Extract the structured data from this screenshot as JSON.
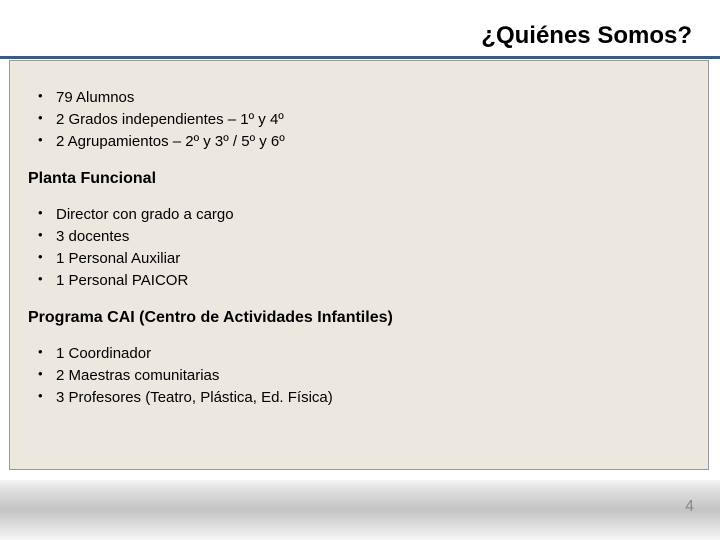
{
  "colors": {
    "title_text": "#000000",
    "underline": "#3d5a80",
    "panel_bg": "#ece8df",
    "panel_border": "#999999",
    "body_text": "#000000",
    "page_number": "#888888",
    "footer_gradient_top": "#f5f5f5",
    "footer_gradient_mid": "#c4c4c4",
    "footer_gradient_bottom": "#f8f8f8"
  },
  "typography": {
    "title_fontsize": 24,
    "title_weight": "bold",
    "heading_fontsize": 16,
    "body_fontsize": 15,
    "font_family": "Verdana, Tahoma, sans-serif"
  },
  "title": "¿Quiénes Somos?",
  "section1": {
    "items": [
      "79 Alumnos",
      "2 Grados independientes – 1º y 4º",
      "2 Agrupamientos – 2º y 3º / 5º y 6º"
    ]
  },
  "section2": {
    "heading": "Planta Funcional",
    "items": [
      "Director con grado a cargo",
      "3 docentes",
      "1 Personal Auxiliar",
      "1 Personal PAICOR"
    ]
  },
  "section3": {
    "heading": "Programa CAI (Centro de Actividades Infantiles)",
    "items": [
      "1 Coordinador",
      "2 Maestras comunitarias",
      "3 Profesores (Teatro, Plástica, Ed. Física)"
    ]
  },
  "page_number": "4"
}
